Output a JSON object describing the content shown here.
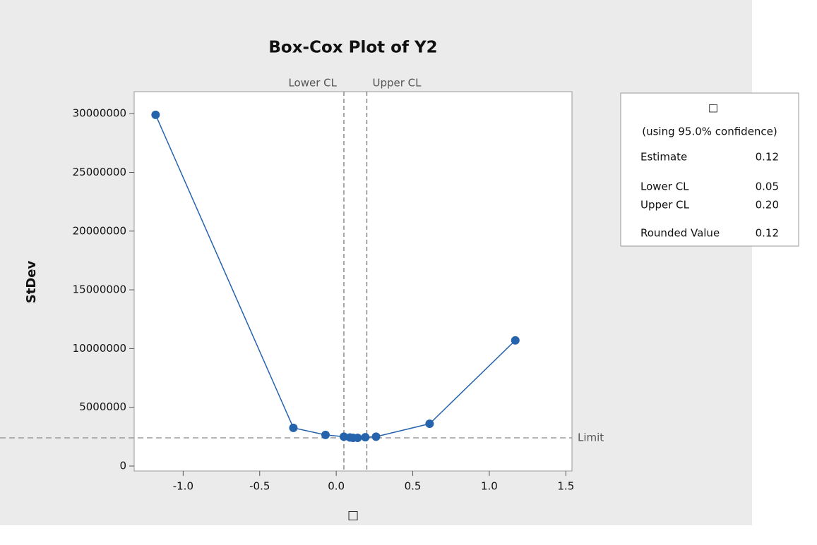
{
  "chart_data": {
    "type": "line",
    "title": "Box-Cox Plot of Y2",
    "xlabel": "□",
    "ylabel": "StDev",
    "x": [
      -1.18,
      -0.28,
      -0.07,
      0.05,
      0.09,
      0.11,
      0.14,
      0.19,
      0.26,
      0.61,
      1.17
    ],
    "values": [
      29900000,
      3250000,
      2650000,
      2500000,
      2430000,
      2400000,
      2400000,
      2450000,
      2500000,
      3600000,
      10700000
    ],
    "color": "#2563ac",
    "xlim": [
      -1.32,
      1.54
    ],
    "ylim": [
      -420000,
      31870000
    ],
    "xticks": [
      {
        "value": -1,
        "label": "-1.0"
      },
      -0.5,
      {
        "value": 0,
        "label": "0.0"
      },
      0.5,
      {
        "value": 1,
        "label": "1.0"
      },
      1.5
    ],
    "yticks": [
      0,
      5000000,
      10000000,
      15000000,
      20000000,
      25000000,
      30000000
    ],
    "vlines": [
      {
        "label": "Lower CL",
        "value": 0.05
      },
      {
        "label": "Upper CL",
        "value": 0.2
      }
    ],
    "hline": {
      "label": "Limit",
      "value": 2400000
    },
    "info_box": {
      "title": "□",
      "subtitle": "(using 95.0% confidence)",
      "rows": [
        [
          "Estimate",
          "0.12"
        ],
        [
          "Lower CL",
          "0.05"
        ],
        [
          "Upper CL",
          "0.20"
        ],
        [
          "Rounded Value",
          "0.12"
        ]
      ]
    }
  }
}
